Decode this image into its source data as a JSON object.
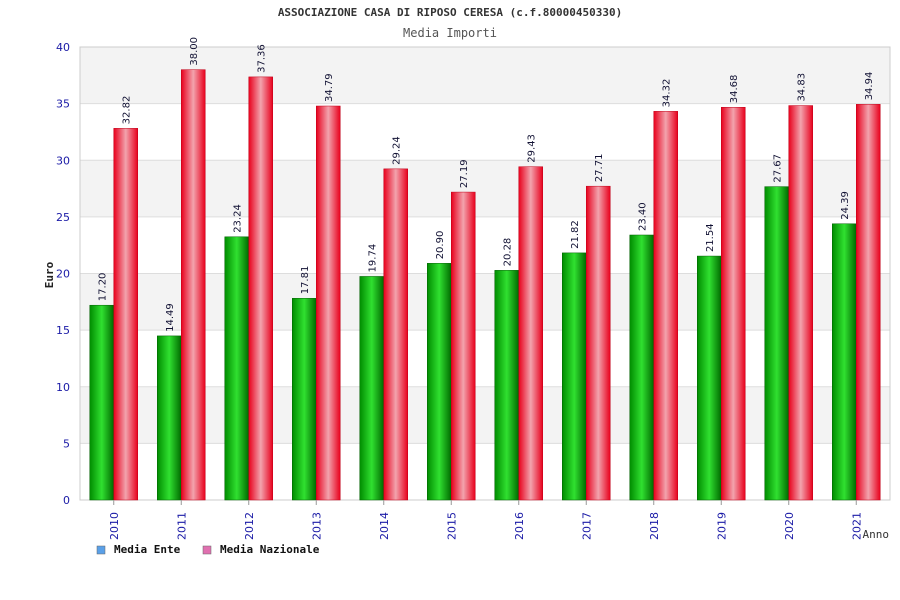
{
  "chart_data": {
    "type": "bar",
    "title": "ASSOCIAZIONE CASA DI RIPOSO CERESA (c.f.80000450330)",
    "subtitle": "Media Importi",
    "xlabel": "Anno",
    "ylabel": "Euro",
    "ylim": [
      0,
      40
    ],
    "yticks": [
      0,
      5,
      10,
      15,
      20,
      25,
      30,
      35,
      40
    ],
    "categories": [
      "2010",
      "2011",
      "2012",
      "2013",
      "2014",
      "2015",
      "2016",
      "2017",
      "2018",
      "2019",
      "2020",
      "2021"
    ],
    "series": [
      {
        "name": "Media Ente",
        "color": "#00b000",
        "values": [
          17.2,
          14.49,
          23.24,
          17.81,
          19.74,
          20.9,
          20.28,
          21.82,
          23.4,
          21.54,
          27.67,
          24.39
        ],
        "labels": [
          "17.20",
          "14.49",
          "23.24",
          "17.81",
          "19.74",
          "20.90",
          "20.28",
          "21.82",
          "23.40",
          "21.54",
          "27.67",
          "24.39"
        ]
      },
      {
        "name": "Media Nazionale",
        "color": "#e8001c",
        "values": [
          32.82,
          38.0,
          37.36,
          34.79,
          29.24,
          27.19,
          29.43,
          27.71,
          34.32,
          34.68,
          34.83,
          34.94
        ],
        "labels": [
          "32.82",
          "38.00",
          "37.36",
          "34.79",
          "29.24",
          "27.19",
          "29.43",
          "27.71",
          "34.32",
          "34.68",
          "34.83",
          "34.94"
        ]
      }
    ],
    "legend": {
      "placement": "bottom-left",
      "entries": [
        {
          "label": "Media Ente",
          "swatch_color": "#5aa0e8"
        },
        {
          "label": "Media Nazionale",
          "swatch_color": "#e070b0"
        }
      ]
    },
    "grid": true,
    "band_colors": [
      "#f3f3f3",
      "#ffffff"
    ]
  }
}
